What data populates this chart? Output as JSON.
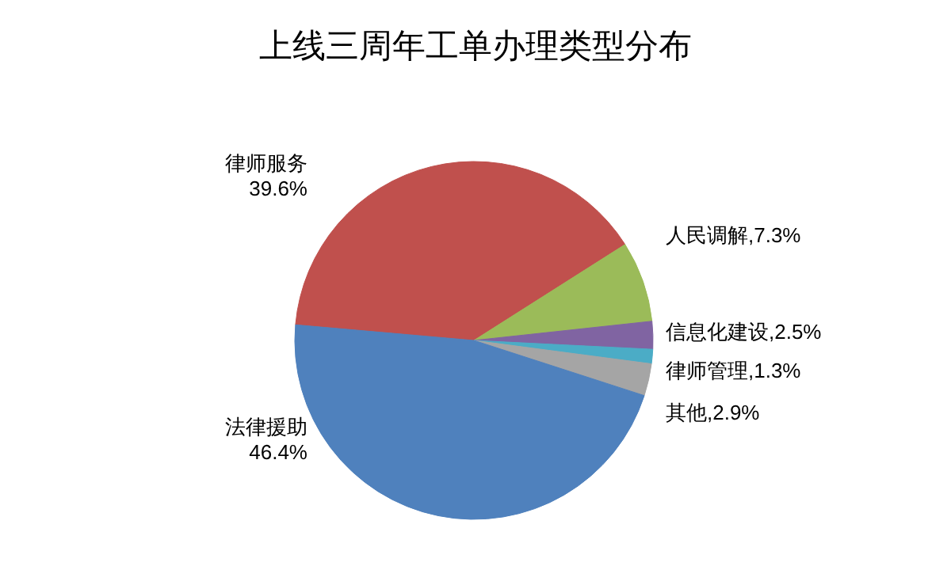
{
  "chart_data": {
    "type": "pie",
    "title": "上线三周年工单办理类型分布",
    "categories": [
      "律师服务",
      "人民调解",
      "信息化建设",
      "律师管理",
      "其他",
      "法律援助"
    ],
    "values": [
      39.6,
      7.3,
      2.5,
      1.3,
      2.9,
      46.4
    ],
    "colors": [
      "#c0504d",
      "#9bbb59",
      "#8064a2",
      "#4bacc6",
      "#a5a5a5",
      "#4f81bd"
    ],
    "value_labels": [
      "39.6%",
      ",7.3%",
      ",2.5%",
      ",1.3%",
      ",2.9%",
      "46.4%"
    ]
  }
}
